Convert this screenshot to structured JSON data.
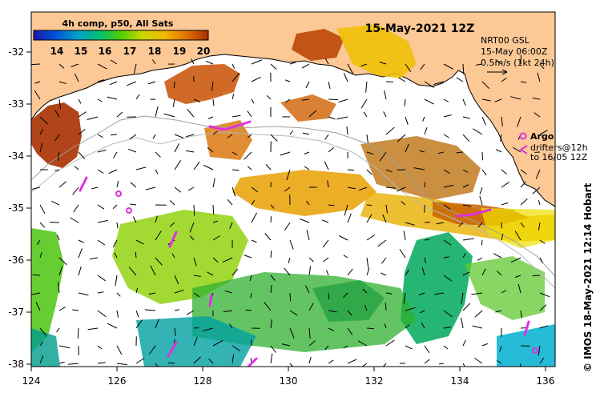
{
  "header": {
    "title": "15-May-2021 12Z",
    "credit": "© IMOS 18-May-2021 12:14 Hobart"
  },
  "colorbar": {
    "title": "4h comp, p50, All Sats",
    "ticks": [
      "14",
      "15",
      "16",
      "17",
      "18",
      "19",
      "20"
    ],
    "colors": [
      "#1a1aa8",
      "#0050d8",
      "#00a0c8",
      "#00c070",
      "#50d000",
      "#c8d800",
      "#f0b800",
      "#e07000",
      "#a83000"
    ]
  },
  "current_note": {
    "line1": "NRT00 GSL",
    "line2": "15-May 06:00Z",
    "line3": "0.5m/s (1kt 24h)"
  },
  "legend": {
    "argo_label": "Argo",
    "drifters_label": "drifters@12h",
    "drifters_to": "to 16/05 12Z",
    "argo_color": "#e030e0"
  },
  "axes": {
    "x_ticks": [
      "124",
      "126",
      "128",
      "130",
      "132",
      "134",
      "136"
    ],
    "y_ticks": [
      "-32",
      "-33",
      "-34",
      "-35",
      "-36",
      "-37",
      "-38"
    ],
    "lon_range": [
      124,
      136.6
    ],
    "lat_range": [
      -38.1,
      -31.4
    ]
  },
  "colors": {
    "land": "#fbc896",
    "bathymetry": "#a0a0a0"
  }
}
